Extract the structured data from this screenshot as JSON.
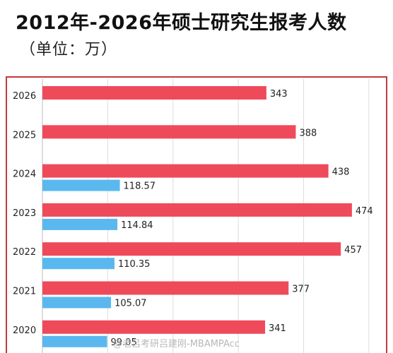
{
  "title": "2012年-2026年硕士研究生报考人数",
  "subtitle": "（单位：万）",
  "watermark": "@老吕考研吕建刚-MBAMPAcc",
  "colors": {
    "primary": "#ef4a5a",
    "secondary": "#5ab8ee",
    "frame": "#c23b3b",
    "grid": "#dddddd"
  },
  "chart_data": {
    "type": "bar",
    "orientation": "horizontal",
    "title": "2012年-2026年硕士研究生报考人数",
    "subtitle": "（单位：万）",
    "categories": [
      "2026",
      "2025",
      "2024",
      "2023",
      "2022",
      "2021",
      "2020"
    ],
    "series": [
      {
        "values": [
          343,
          388,
          438,
          474,
          457,
          377,
          341
        ],
        "labels": [
          "343",
          "388",
          "438",
          "474",
          "457",
          "377",
          "341"
        ],
        "color": "#ef4a5a"
      },
      {
        "values": [
          null,
          null,
          118.57,
          114.84,
          110.35,
          105.07,
          99.05
        ],
        "labels": [
          "",
          "",
          "118.57",
          "114.84",
          "110.35",
          "105.07",
          "99.05"
        ],
        "color": "#5ab8ee"
      }
    ],
    "xlim": [
      0,
      500
    ],
    "grid": true,
    "legend": "none"
  }
}
